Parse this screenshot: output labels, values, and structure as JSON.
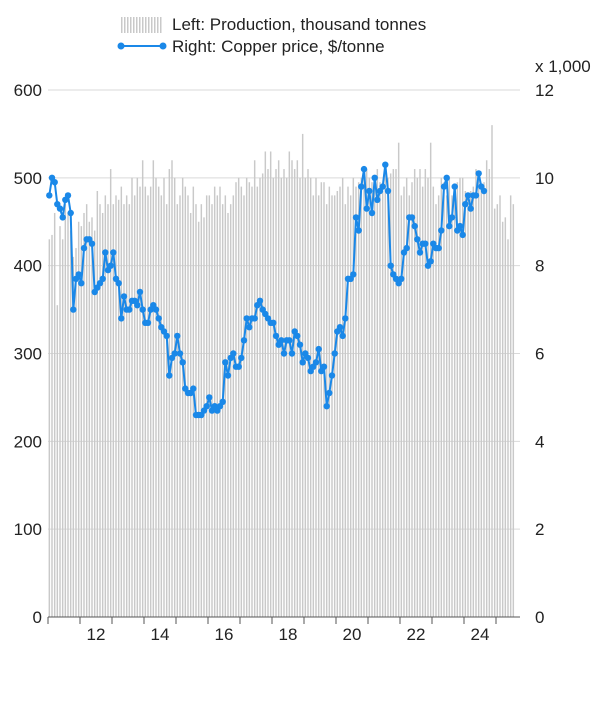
{
  "chart_data": {
    "type": "bar+line",
    "legend": {
      "position": "top",
      "items": [
        {
          "key": "production",
          "label": "Left: Production, thousand tonnes"
        },
        {
          "key": "price",
          "label": "Right: Copper price, $/tonne"
        }
      ]
    },
    "right_axis_unit": "x 1,000",
    "colors": {
      "bars": "#c9c9c9",
      "line": "#1a88e8",
      "grid": "#d9d9d9",
      "text": "#222222"
    },
    "grid": true,
    "x_axis": {
      "range": [
        2011,
        2025.75
      ],
      "ticks": [
        2012,
        2014,
        2016,
        2018,
        2020,
        2022,
        2024
      ],
      "tick_labels": [
        "12",
        "14",
        "16",
        "18",
        "20",
        "22",
        "24"
      ]
    },
    "y_left": {
      "range": [
        0,
        600
      ],
      "ticks": [
        0,
        100,
        200,
        300,
        400,
        500,
        600
      ],
      "tick_labels": [
        "0",
        "100",
        "200",
        "300",
        "400",
        "500",
        "600"
      ]
    },
    "y_right": {
      "range": [
        0,
        12
      ],
      "ticks": [
        0,
        2,
        4,
        6,
        8,
        10,
        12
      ],
      "tick_labels": [
        "0",
        "2",
        "4",
        "6",
        "8",
        "10",
        "12"
      ]
    },
    "series": [
      {
        "name": "Left: Production, thousand tonnes",
        "axis": "left",
        "type": "bar",
        "frequency": "monthly",
        "start": "2011-01",
        "values": [
          430,
          435,
          460,
          355,
          445,
          430,
          470,
          460,
          440,
          410,
          420,
          450,
          445,
          460,
          470,
          450,
          455,
          440,
          485,
          470,
          460,
          480,
          470,
          510,
          470,
          480,
          475,
          490,
          470,
          480,
          470,
          500,
          480,
          500,
          490,
          520,
          490,
          480,
          490,
          520,
          500,
          490,
          480,
          500,
          470,
          510,
          520,
          500,
          470,
          480,
          500,
          490,
          480,
          460,
          490,
          470,
          450,
          470,
          455,
          480,
          480,
          470,
          490,
          480,
          490,
          470,
          480,
          460,
          470,
          480,
          495,
          500,
          490,
          480,
          500,
          495,
          490,
          520,
          490,
          500,
          505,
          530,
          510,
          530,
          500,
          510,
          520,
          500,
          510,
          500,
          530,
          520,
          510,
          520,
          500,
          550,
          500,
          510,
          500,
          480,
          500,
          480,
          495,
          495,
          470,
          490,
          480,
          480,
          485,
          490,
          500,
          470,
          490,
          480,
          500,
          490,
          495,
          500,
          500,
          510,
          500,
          495,
          490,
          510,
          495,
          485,
          505,
          500,
          505,
          510,
          510,
          540,
          480,
          490,
          500,
          480,
          495,
          510,
          500,
          510,
          490,
          510,
          500,
          540,
          490,
          470,
          480,
          500,
          495,
          480,
          500,
          480,
          480,
          495,
          500,
          500,
          485,
          480,
          485,
          490,
          510,
          500,
          490,
          495,
          520,
          510,
          560,
          465,
          470,
          480,
          450,
          455,
          430,
          480,
          470
        ]
      },
      {
        "name": "Right: Copper price, $/tonne",
        "axis": "right",
        "type": "line",
        "frequency": "monthly",
        "start": "2011-01",
        "values": [
          9.6,
          10.0,
          9.9,
          9.4,
          9.3,
          9.1,
          9.5,
          9.6,
          9.2,
          7.0,
          7.7,
          7.8,
          7.6,
          8.4,
          8.6,
          8.6,
          8.5,
          7.4,
          7.5,
          7.6,
          7.7,
          8.3,
          7.9,
          8.0,
          8.3,
          7.7,
          7.6,
          6.8,
          7.3,
          7.0,
          7.0,
          7.2,
          7.2,
          7.1,
          7.4,
          7.0,
          6.7,
          6.7,
          7.0,
          7.1,
          7.0,
          6.8,
          6.6,
          6.5,
          6.4,
          5.5,
          5.9,
          6.0,
          6.4,
          6.0,
          5.8,
          5.2,
          5.1,
          5.1,
          5.2,
          4.6,
          4.6,
          4.6,
          4.7,
          4.8,
          5.0,
          4.7,
          4.8,
          4.7,
          4.8,
          4.9,
          5.8,
          5.5,
          5.9,
          6.0,
          5.7,
          5.7,
          5.9,
          6.3,
          6.8,
          6.6,
          6.8,
          6.8,
          7.1,
          7.2,
          7.0,
          6.9,
          6.8,
          6.7,
          6.7,
          6.4,
          6.2,
          6.3,
          6.0,
          6.3,
          6.3,
          6.0,
          6.5,
          6.4,
          6.2,
          5.8,
          6.0,
          5.9,
          5.6,
          5.7,
          5.8,
          6.1,
          5.6,
          5.7,
          4.8,
          5.1,
          5.5,
          6.0,
          6.5,
          6.6,
          6.4,
          6.8,
          7.7,
          7.7,
          7.8,
          9.1,
          8.8,
          9.8,
          10.2,
          9.3,
          9.7,
          9.2,
          10.0,
          9.5,
          9.7,
          9.8,
          10.3,
          9.7,
          8.0,
          7.8,
          7.7,
          7.6,
          7.7,
          8.3,
          8.4,
          9.1,
          9.1,
          8.9,
          8.6,
          8.3,
          8.5,
          8.5,
          8.0,
          8.1,
          8.5,
          8.4,
          8.4,
          8.8,
          9.8,
          10.0,
          8.9,
          9.1,
          9.8,
          8.8,
          8.9,
          8.7,
          9.4,
          9.6,
          9.3,
          9.6,
          9.6,
          10.1,
          9.8,
          9.7
        ]
      }
    ]
  }
}
